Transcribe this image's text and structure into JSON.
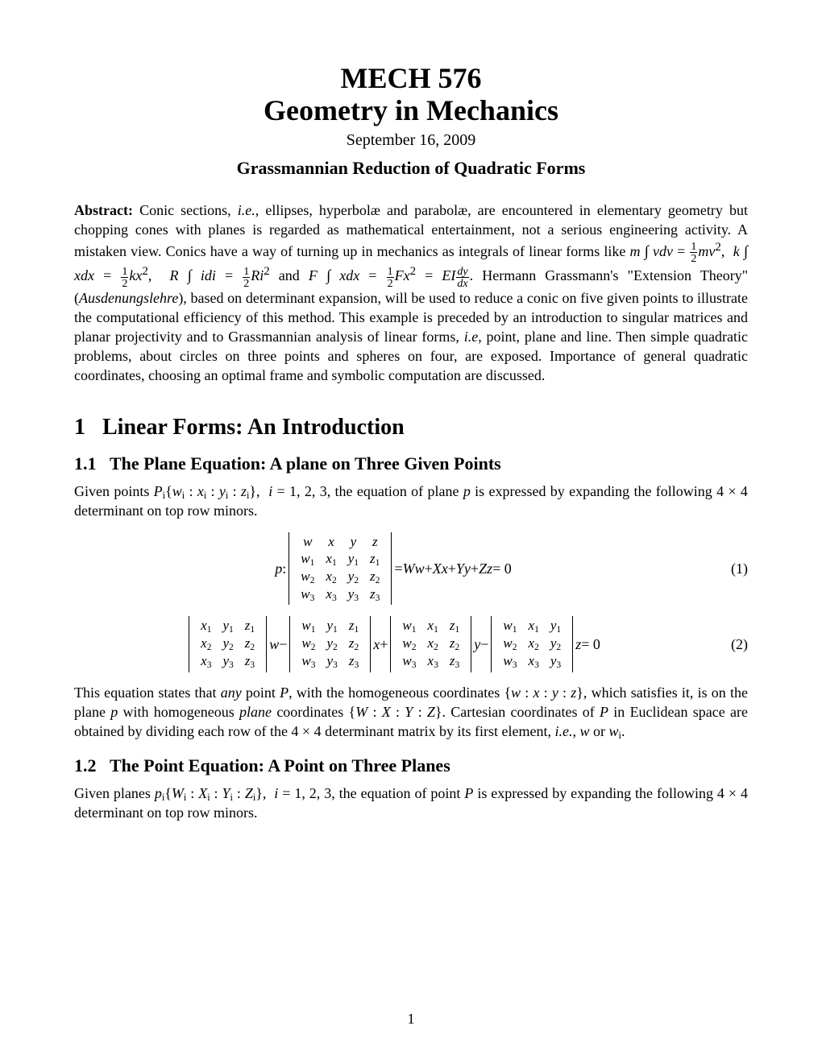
{
  "title": {
    "line1": "MECH 576",
    "line2": "Geometry in Mechanics",
    "date": "September 16, 2009",
    "subtitle": "Grassmannian Reduction of Quadratic Forms"
  },
  "abstract": {
    "label": "Abstract:"
  },
  "section1": {
    "number": "1",
    "title": "Linear Forms: An Introduction"
  },
  "section11": {
    "number": "1.1",
    "title": "The Plane Equation: A plane on Three Given Points",
    "eq1num": "(1)",
    "eq2num": "(2)"
  },
  "section12": {
    "number": "1.2",
    "title": "The Point Equation: A Point on Three Planes"
  },
  "pageNumber": "1",
  "style": {
    "bodyFontSize": 18,
    "titleFontSize": 36,
    "dateFontSize": 20,
    "subtitleFontSize": 22,
    "sectionFontSize": 28,
    "subsectionFontSize": 22,
    "textColor": "#000000",
    "backgroundColor": "#ffffff",
    "pageWidth": 1020,
    "pageHeight": 1320
  }
}
